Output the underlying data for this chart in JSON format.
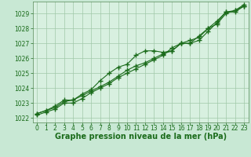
{
  "title": "Graphe pression niveau de la mer (hPa)",
  "background_color": "#c8e8d4",
  "plot_bg_color": "#d8f0e0",
  "grid_color": "#a0c8a8",
  "line_color": "#1a6b1a",
  "spine_color": "#558855",
  "xlim": [
    -0.5,
    23.5
  ],
  "ylim": [
    1021.7,
    1029.8
  ],
  "yticks": [
    1022,
    1023,
    1024,
    1025,
    1026,
    1027,
    1028,
    1029
  ],
  "xticks": [
    0,
    1,
    2,
    3,
    4,
    5,
    6,
    7,
    8,
    9,
    10,
    11,
    12,
    13,
    14,
    15,
    16,
    17,
    18,
    19,
    20,
    21,
    22,
    23
  ],
  "series1": [
    1022.3,
    1022.5,
    1022.7,
    1023.1,
    1023.2,
    1023.5,
    1023.8,
    1024.1,
    1024.4,
    1024.8,
    1025.2,
    1025.5,
    1025.7,
    1026.0,
    1026.3,
    1026.5,
    1027.0,
    1027.0,
    1027.2,
    1027.8,
    1028.4,
    1029.1,
    1029.2,
    1029.6
  ],
  "series2": [
    1022.2,
    1022.4,
    1022.6,
    1023.0,
    1023.0,
    1023.3,
    1023.7,
    1024.0,
    1024.3,
    1024.7,
    1025.0,
    1025.3,
    1025.6,
    1025.9,
    1026.2,
    1026.7,
    1027.0,
    1027.0,
    1027.5,
    1028.0,
    1028.3,
    1029.0,
    1029.2,
    1029.5
  ],
  "series3": [
    1022.3,
    1022.5,
    1022.8,
    1023.2,
    1023.2,
    1023.6,
    1023.9,
    1024.5,
    1025.0,
    1025.4,
    1025.6,
    1026.2,
    1026.5,
    1026.5,
    1026.4,
    1026.5,
    1027.0,
    1027.2,
    1027.4,
    1028.0,
    1028.5,
    1029.1,
    1029.1,
    1029.5
  ],
  "marker": "+",
  "markersize": 4,
  "markeredgewidth": 1.0,
  "linewidth": 0.8,
  "title_fontsize": 7,
  "tick_fontsize": 5.5
}
